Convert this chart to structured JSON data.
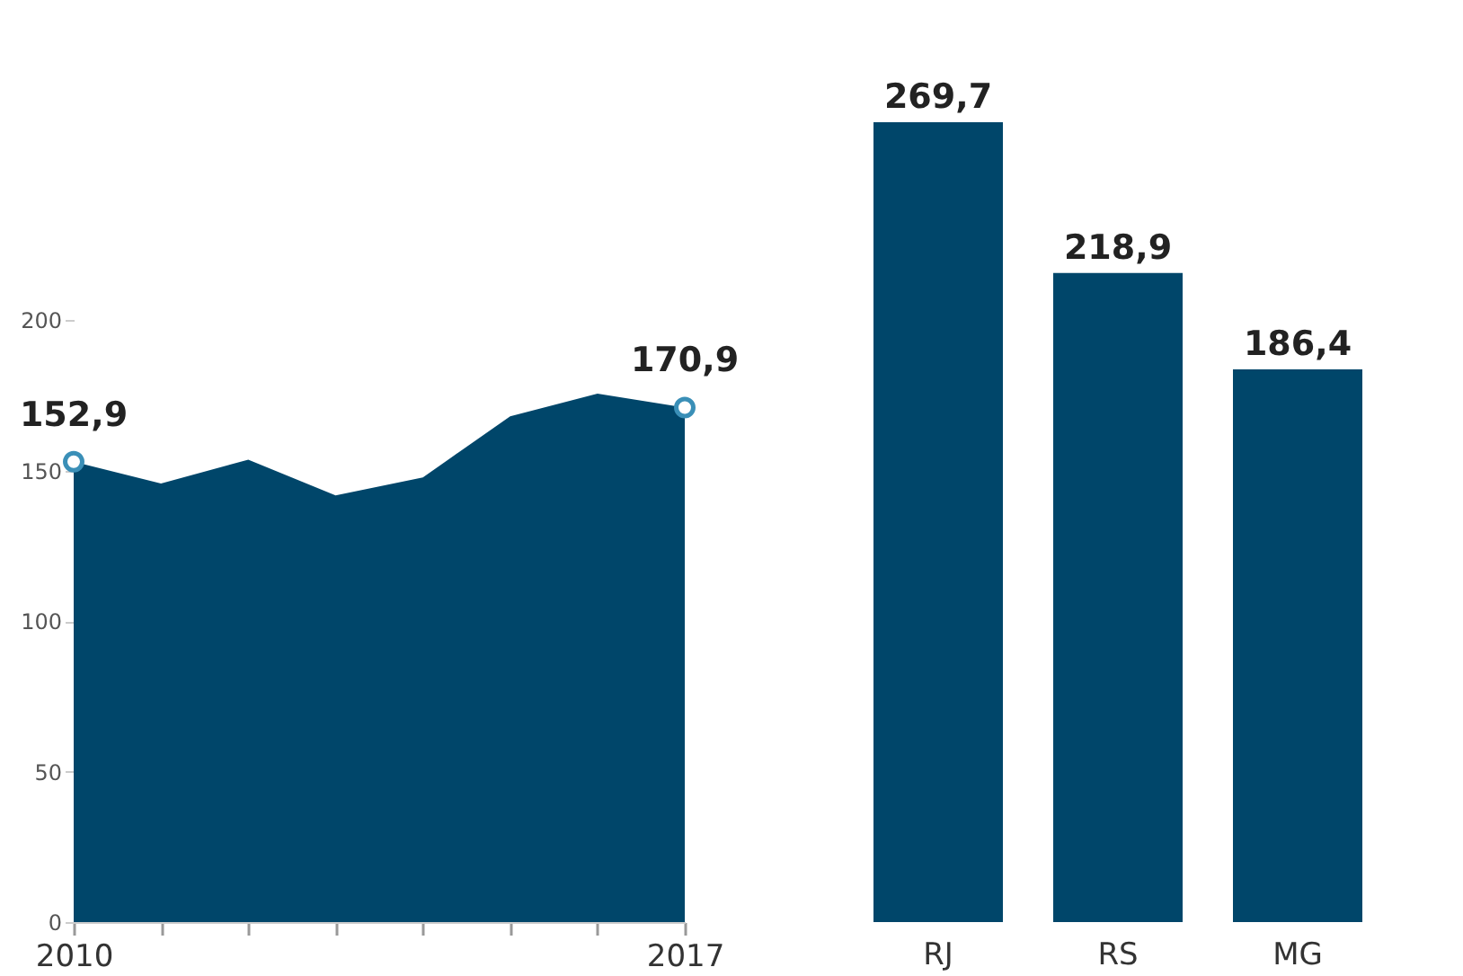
{
  "chart_data": [
    {
      "type": "area",
      "x": [
        2010,
        2011,
        2012,
        2013,
        2014,
        2015,
        2016,
        2017
      ],
      "series": [
        {
          "color": "#00466a",
          "values": [
            152.9,
            145.7,
            153.6,
            141.7,
            147.7,
            168,
            175.5,
            170.9
          ],
          "value_labels": [
            "152,9",
            null,
            null,
            null,
            null,
            null,
            null,
            "170,9"
          ]
        }
      ],
      "xlim": [
        2010,
        2017
      ],
      "xticks": [
        2010,
        {
          "value": 2011,
          "label": null
        },
        {
          "value": 2012,
          "label": null
        },
        {
          "value": 2013,
          "label": null
        },
        {
          "value": 2014,
          "label": null
        },
        {
          "value": 2015,
          "label": null
        },
        {
          "value": 2016,
          "label": null
        },
        2017
      ],
      "ylim": [
        0,
        200
      ],
      "yticks": [
        0,
        50,
        100,
        150,
        200
      ],
      "grid": false
    },
    {
      "type": "bar",
      "categories": [
        "RJ",
        "RS",
        "MG"
      ],
      "series": [
        {
          "color": "#00466a",
          "values": [
            269.7,
            218.9,
            186.4
          ],
          "value_labels": [
            "269,7",
            "218,9",
            "186,4"
          ]
        }
      ],
      "tick_labels": "x",
      "grid": false
    }
  ]
}
